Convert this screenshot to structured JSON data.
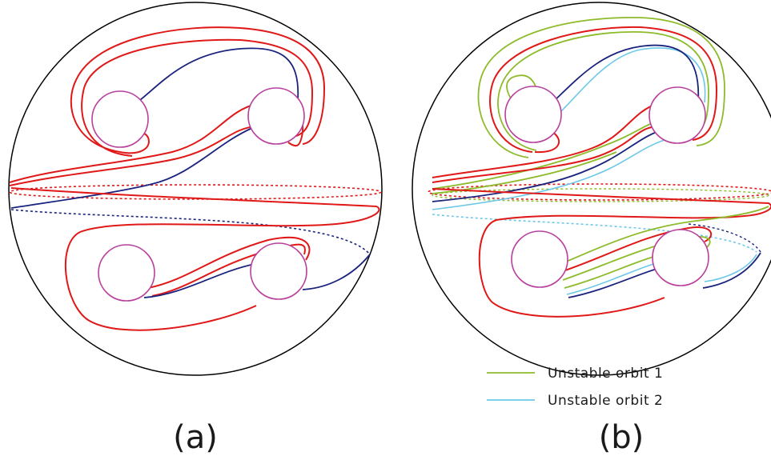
{
  "panels": {
    "a": {
      "label": "(a)"
    },
    "b": {
      "label": "(b)"
    }
  },
  "legend": {
    "items": [
      {
        "label": "Unstable orbit 1",
        "color": "#8dbb2a"
      },
      {
        "label": "Unstable orbit 2",
        "color": "#6cc8e8"
      }
    ]
  },
  "colors": {
    "boundary": "#000000",
    "hole": "#b8409c",
    "red_curve": "#e01818",
    "blue_curve": "#1a237e",
    "orbit_1": "#8dbb2a",
    "orbit_2": "#6cc8e8"
  }
}
